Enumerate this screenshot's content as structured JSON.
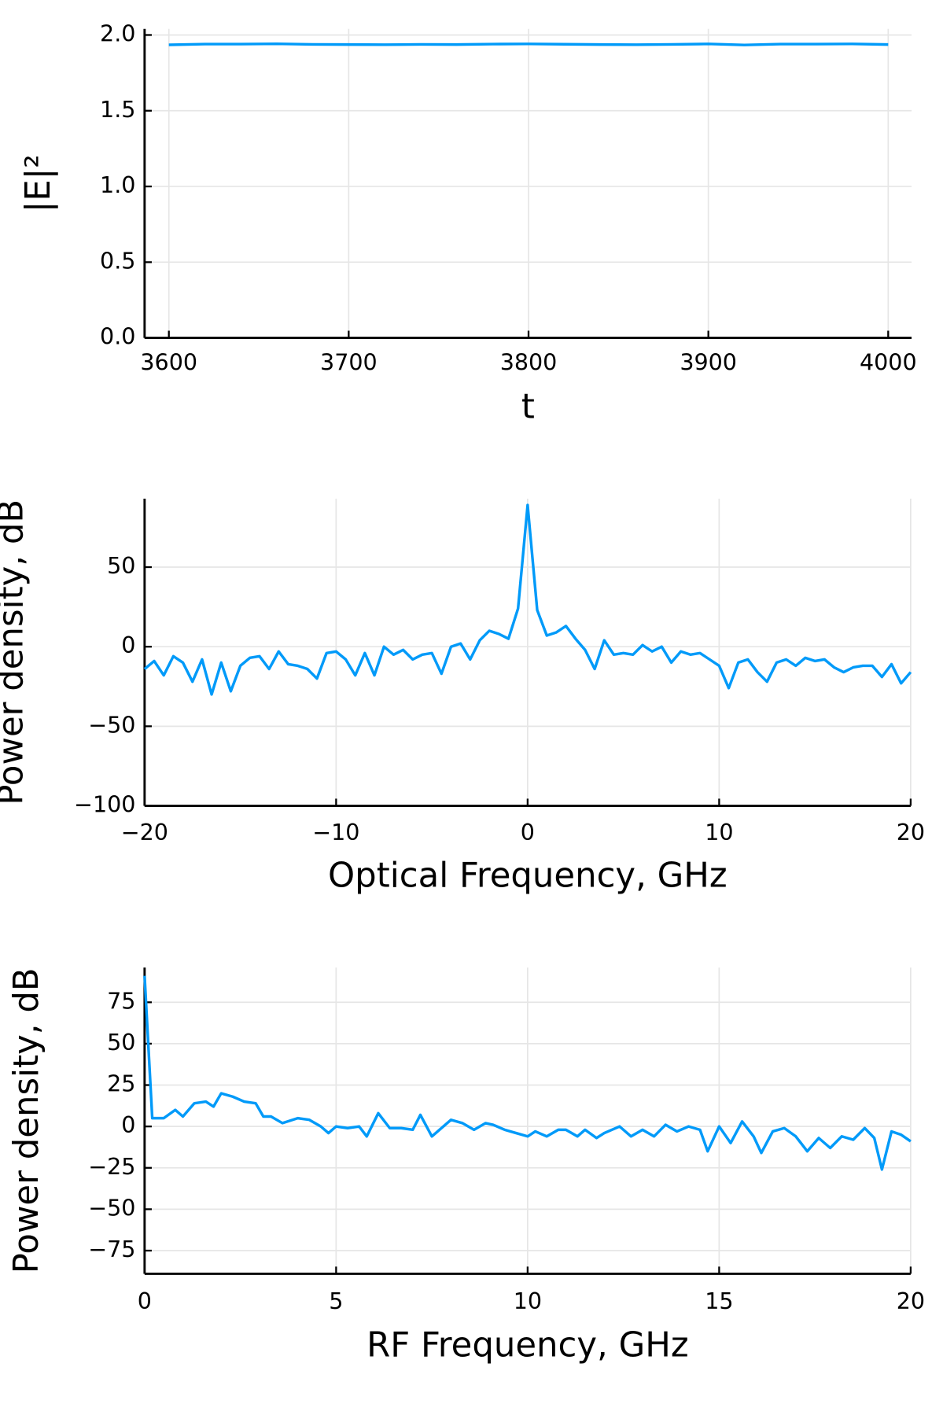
{
  "chart_data": [
    {
      "type": "line",
      "x_label": "t",
      "y_label": "|E|²",
      "x": [
        3600,
        3620,
        3640,
        3660,
        3680,
        3700,
        3720,
        3740,
        3760,
        3780,
        3800,
        3820,
        3840,
        3860,
        3880,
        3900,
        3920,
        3940,
        3960,
        3980,
        4000
      ],
      "values": [
        1.935,
        1.94,
        1.94,
        1.942,
        1.938,
        1.937,
        1.936,
        1.938,
        1.937,
        1.94,
        1.941,
        1.939,
        1.937,
        1.936,
        1.938,
        1.941,
        1.934,
        1.94,
        1.94,
        1.941,
        1.937
      ],
      "color": "#009af9",
      "grid": true,
      "xlim": [
        3586.5,
        4013
      ],
      "ylim": [
        0,
        2.04
      ],
      "xticks": [
        3600,
        3700,
        3800,
        3900,
        4000
      ],
      "yticks": [
        {
          "value": 0,
          "label": "0.0"
        },
        0.5,
        {
          "value": 1,
          "label": "1.0"
        },
        1.5,
        {
          "value": 2,
          "label": "2.0"
        }
      ]
    },
    {
      "type": "line",
      "x_label": "Optical Frequency, GHz",
      "y_label": "Power density, dB",
      "x": [
        -20,
        -19.5,
        -19,
        -18.5,
        -18,
        -17.5,
        -17,
        -16.5,
        -16,
        -15.5,
        -15,
        -14.5,
        -14,
        -13.5,
        -13,
        -12.5,
        -12,
        -11.5,
        -11,
        -10.5,
        -10,
        -9.5,
        -9,
        -8.5,
        -8,
        -7.5,
        -7,
        -6.5,
        -6,
        -5.5,
        -5,
        -4.5,
        -4,
        -3.5,
        -3,
        -2.5,
        -2,
        -1.5,
        -1,
        -0.5,
        0,
        0.5,
        1,
        1.5,
        2,
        2.5,
        3,
        3.5,
        4,
        4.5,
        5,
        5.5,
        6,
        6.5,
        7,
        7.5,
        8,
        8.5,
        9,
        9.5,
        10,
        10.5,
        11,
        11.5,
        12,
        12.5,
        13,
        13.5,
        14,
        14.5,
        15,
        15.5,
        16,
        16.5,
        17,
        17.5,
        18,
        18.5,
        19,
        19.5,
        20
      ],
      "values": [
        -14,
        -9,
        -18,
        -6,
        -10,
        -22,
        -8,
        -30,
        -10,
        -28,
        -12,
        -7,
        -6,
        -14,
        -3,
        -11,
        -12,
        -14,
        -20,
        -4,
        -3,
        -8,
        -18,
        -4,
        -18,
        0,
        -5,
        -2,
        -8,
        -5,
        -4,
        -17,
        0,
        2,
        -8,
        4,
        10,
        8,
        5,
        24,
        89,
        23,
        7,
        9,
        13,
        5,
        -2,
        -14,
        4,
        -5,
        -4,
        -5,
        1,
        -3,
        0,
        -10,
        -3,
        -5,
        -4,
        -8,
        -12,
        -26,
        -10,
        -8,
        -16,
        -22,
        -10,
        -8,
        -12,
        -7,
        -9,
        -8,
        -13,
        -16,
        -13,
        -12,
        -12,
        -19,
        -11,
        -23,
        -16
      ],
      "color": "#009af9",
      "grid": true,
      "xlim": [
        -20,
        20
      ],
      "ylim": [
        -100,
        93
      ],
      "xticks": [
        {
          "value": -20,
          "label": "−20"
        },
        {
          "value": -10,
          "label": "−10"
        },
        0,
        10,
        20
      ],
      "yticks": [
        {
          "value": -100,
          "label": "−100"
        },
        {
          "value": -50,
          "label": "−50"
        },
        0,
        50
      ]
    },
    {
      "type": "line",
      "x_label": "RF Frequency, GHz",
      "y_label": "Power density, dB",
      "x": [
        0,
        0.2,
        0.5,
        0.8,
        1,
        1.3,
        1.6,
        1.8,
        2,
        2.3,
        2.6,
        2.9,
        3.1,
        3.3,
        3.6,
        4,
        4.3,
        4.6,
        4.8,
        5,
        5.3,
        5.6,
        5.8,
        6.1,
        6.4,
        6.7,
        7,
        7.2,
        7.5,
        8,
        8.3,
        8.6,
        8.9,
        9.1,
        9.4,
        9.7,
        10,
        10.2,
        10.5,
        10.8,
        11,
        11.3,
        11.5,
        11.8,
        12,
        12.4,
        12.7,
        13,
        13.3,
        13.6,
        13.9,
        14.2,
        14.5,
        14.7,
        15,
        15.3,
        15.6,
        15.9,
        16.1,
        16.4,
        16.7,
        17,
        17.3,
        17.6,
        17.9,
        18.2,
        18.5,
        18.8,
        19.05,
        19.25,
        19.5,
        19.75,
        20
      ],
      "values": [
        91,
        5,
        5,
        10,
        6,
        14,
        15,
        12,
        20,
        18,
        15,
        14,
        6,
        6,
        2,
        5,
        4,
        0,
        -4,
        0,
        -1,
        0,
        -6,
        8,
        -1,
        -1,
        -2,
        7,
        -6,
        4,
        2,
        -2,
        2,
        1,
        -2,
        -4,
        -6,
        -3,
        -6,
        -2,
        -2,
        -6,
        -2,
        -7,
        -4,
        0,
        -6,
        -2,
        -6,
        1,
        -3,
        0,
        -2,
        -15,
        0,
        -10,
        3,
        -6,
        -16,
        -3,
        -1,
        -6,
        -15,
        -7,
        -13,
        -6,
        -8,
        -1,
        -7,
        -26,
        -3,
        -5,
        -9
      ],
      "color": "#009af9",
      "grid": true,
      "xlim": [
        0,
        20
      ],
      "ylim": [
        -89,
        96
      ],
      "xticks": [
        0,
        5,
        10,
        15,
        20
      ],
      "yticks": [
        {
          "value": -75,
          "label": "−75"
        },
        {
          "value": -50,
          "label": "−50"
        },
        {
          "value": -25,
          "label": "−25"
        },
        0,
        25,
        50,
        75
      ]
    }
  ]
}
